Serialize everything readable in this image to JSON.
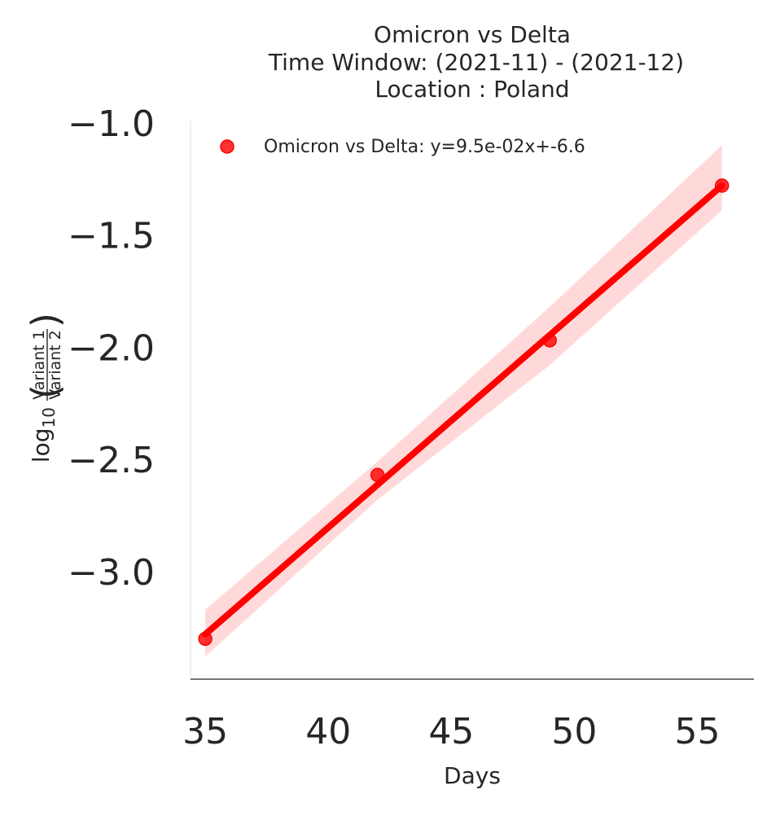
{
  "chart_data": {
    "type": "scatter",
    "title_lines": [
      "Omicron vs Delta",
      "Time Window: (2021-11) - (2021-12)",
      "Location : Poland"
    ],
    "xlabel": "Days",
    "ylabel": {
      "prefix": "log",
      "subscript": "10",
      "numerator": "Variant 1",
      "denominator": "Variant 2"
    },
    "xlim": [
      34.4,
      57.3
    ],
    "ylim": [
      -3.48,
      -0.99
    ],
    "x_ticks": [
      35,
      40,
      45,
      50,
      55
    ],
    "x_tick_labels": [
      "35",
      "40",
      "45",
      "50",
      "55"
    ],
    "y_ticks": [
      -1.0,
      -1.5,
      -2.0,
      -2.5,
      -3.0
    ],
    "y_tick_labels": [
      "−1.0",
      "−1.5",
      "−2.0",
      "−2.5",
      "−3.0"
    ],
    "grid": false,
    "legend_position": "upper-left",
    "series": [
      {
        "name": "Omicron vs Delta: y=9.5e-02x+-6.6",
        "color": "#ff0000",
        "points": [
          {
            "x": 35,
            "y": -3.3
          },
          {
            "x": 42,
            "y": -2.57
          },
          {
            "x": 49,
            "y": -1.97
          },
          {
            "x": 56,
            "y": -1.28
          }
        ],
        "fit": {
          "slope": 0.095,
          "intercept": -6.6,
          "x_range": [
            35,
            56
          ],
          "y_at_start": -3.28,
          "y_at_end": -1.28
        },
        "ci_band": [
          {
            "x": 35,
            "lower": -3.38,
            "upper": -3.17
          },
          {
            "x": 42,
            "lower": -2.68,
            "upper": -2.51
          },
          {
            "x": 49,
            "lower": -2.08,
            "upper": -1.82
          },
          {
            "x": 56,
            "lower": -1.39,
            "upper": -1.1
          }
        ]
      }
    ]
  }
}
